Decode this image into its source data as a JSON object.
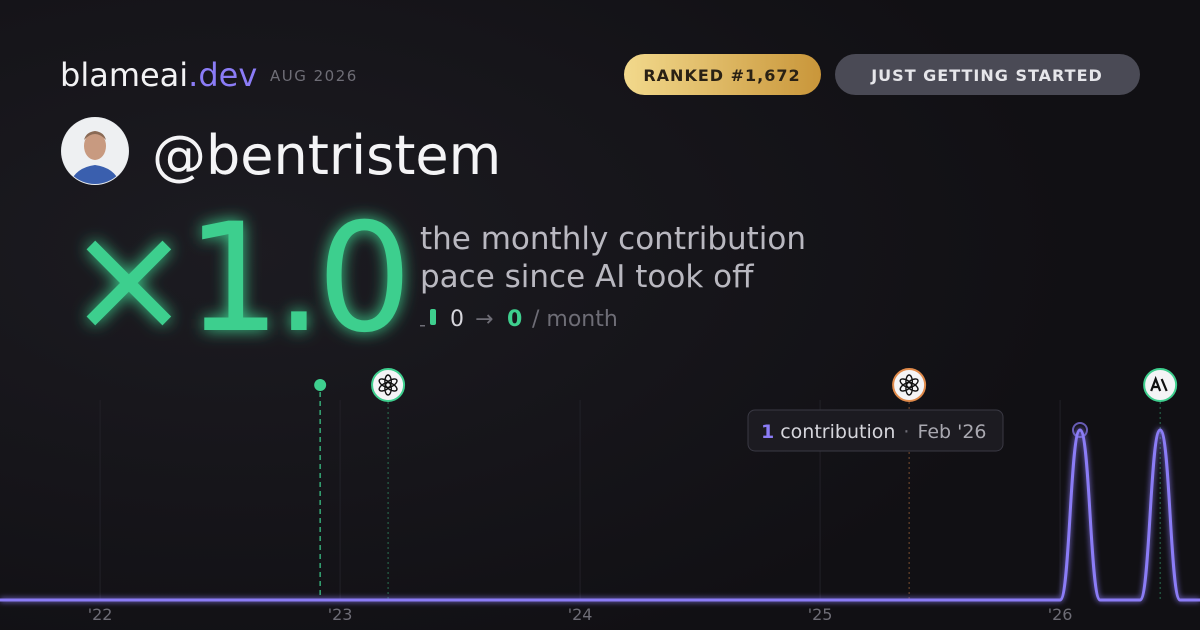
{
  "header": {
    "brand": "blameai",
    "brand_tld": ".dev",
    "period": "AUG 2026",
    "rank_badge": "RANKED #1,672",
    "status_badge": "JUST GETTING STARTED"
  },
  "profile": {
    "handle": "@bentristem"
  },
  "hero": {
    "multiplier": "×1.0",
    "caption_lines": [
      "the monthly contribution",
      "pace since AI took off"
    ],
    "pace_before": 0,
    "arrow": "→",
    "pace_after": 0,
    "pace_unit": "/ month"
  },
  "tooltip": {
    "count": 1,
    "label": "contribution",
    "separator": "·",
    "date": "Feb '26"
  },
  "chart_data": {
    "type": "line",
    "color": "#8b7cf6",
    "x": [
      2021.583,
      2021.667,
      2021.75,
      2021.833,
      2021.917,
      2022,
      2022.083,
      2022.167,
      2022.25,
      2022.333,
      2022.417,
      2022.5,
      2022.583,
      2022.667,
      2022.75,
      2022.833,
      2022.917,
      2023,
      2023.083,
      2023.167,
      2023.25,
      2023.333,
      2023.417,
      2023.5,
      2023.583,
      2023.667,
      2023.75,
      2023.833,
      2023.917,
      2024,
      2024.083,
      2024.167,
      2024.25,
      2024.333,
      2024.417,
      2024.5,
      2024.583,
      2024.667,
      2024.75,
      2024.833,
      2024.917,
      2025,
      2025.083,
      2025.167,
      2025.25,
      2025.333,
      2025.417,
      2025.5,
      2025.583,
      2025.667,
      2025.75,
      2025.833,
      2025.917,
      2026,
      2026.083,
      2026.167,
      2026.25,
      2026.333,
      2026.417,
      2026.5,
      2026.583
    ],
    "values": [
      0,
      0,
      0,
      0,
      0,
      0,
      0,
      0,
      0,
      0,
      0,
      0,
      0,
      0,
      0,
      0,
      0,
      0,
      0,
      0,
      0,
      0,
      0,
      0,
      0,
      0,
      0,
      0,
      0,
      0,
      0,
      0,
      0,
      0,
      0,
      0,
      0,
      0,
      0,
      0,
      0,
      0,
      0,
      0,
      0,
      0,
      0,
      0,
      0,
      0,
      0,
      0,
      0,
      0,
      1,
      0,
      0,
      0,
      1,
      0,
      0
    ],
    "xlim": [
      2021.583,
      2026.583
    ],
    "ylim": [
      0,
      1
    ],
    "xticks": [
      {
        "value": 2022,
        "label": "'22"
      },
      {
        "value": 2023,
        "label": "'23"
      },
      {
        "value": 2024,
        "label": "'24"
      },
      {
        "value": 2025,
        "label": "'25"
      },
      {
        "value": 2026,
        "label": "'26"
      }
    ],
    "grid": true,
    "events": [
      {
        "x": 2022.917,
        "marker": "dot",
        "color": "#3ecf8e"
      },
      {
        "x": 2023.2,
        "marker": "openai",
        "color": "#3ecf8e"
      },
      {
        "x": 2025.371,
        "marker": "openai",
        "color": "#e08a4a"
      },
      {
        "x": 2026.417,
        "marker": "anthropic",
        "color": "#3ecf8e"
      }
    ]
  }
}
